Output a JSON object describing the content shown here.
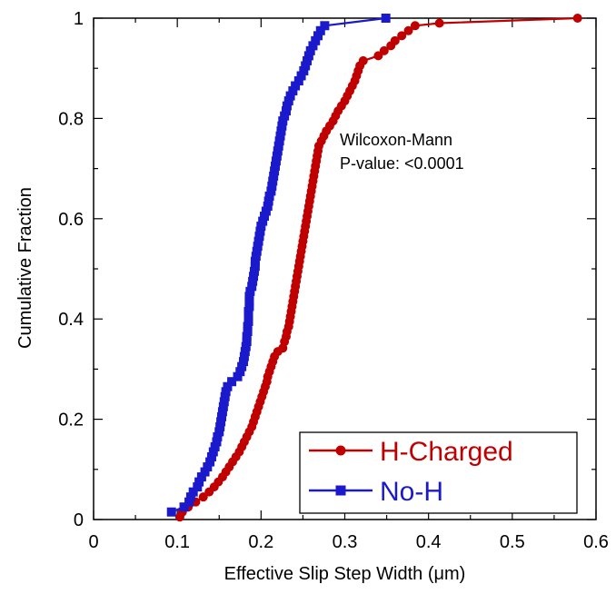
{
  "chart_data": {
    "type": "line",
    "title": "",
    "xlabel": "Effective Slip Step Width (μm)",
    "ylabel": "Cumulative Fraction",
    "xlim": [
      0,
      0.6
    ],
    "ylim": [
      0,
      1
    ],
    "xticks": [
      "0",
      "0.1",
      "0.2",
      "0.3",
      "0.4",
      "0.5",
      "0.6"
    ],
    "yticks": [
      "0",
      "0.2",
      "0.4",
      "0.6",
      "0.8",
      "1"
    ],
    "grid": false,
    "legend_position": "bottom-right",
    "annotation": {
      "line1": "Wilcoxon-Mann",
      "line2": "P-value: <0.0001"
    },
    "series": [
      {
        "name": "H-Charged",
        "color": "#c00000",
        "marker": "circle",
        "points": [
          [
            0.103,
            0.005
          ],
          [
            0.106,
            0.015
          ],
          [
            0.113,
            0.025
          ],
          [
            0.122,
            0.035
          ],
          [
            0.131,
            0.045
          ],
          [
            0.138,
            0.055
          ],
          [
            0.144,
            0.065
          ],
          [
            0.149,
            0.075
          ],
          [
            0.154,
            0.085
          ],
          [
            0.158,
            0.095
          ],
          [
            0.162,
            0.105
          ],
          [
            0.166,
            0.115
          ],
          [
            0.17,
            0.125
          ],
          [
            0.174,
            0.135
          ],
          [
            0.177,
            0.145
          ],
          [
            0.18,
            0.155
          ],
          [
            0.183,
            0.165
          ],
          [
            0.186,
            0.175
          ],
          [
            0.189,
            0.185
          ],
          [
            0.191,
            0.195
          ],
          [
            0.193,
            0.205
          ],
          [
            0.195,
            0.215
          ],
          [
            0.197,
            0.225
          ],
          [
            0.199,
            0.235
          ],
          [
            0.201,
            0.245
          ],
          [
            0.203,
            0.255
          ],
          [
            0.205,
            0.265
          ],
          [
            0.207,
            0.275
          ],
          [
            0.208,
            0.285
          ],
          [
            0.21,
            0.295
          ],
          [
            0.212,
            0.305
          ],
          [
            0.214,
            0.315
          ],
          [
            0.216,
            0.325
          ],
          [
            0.22,
            0.335
          ],
          [
            0.226,
            0.342
          ],
          [
            0.228,
            0.355
          ],
          [
            0.23,
            0.365
          ],
          [
            0.231,
            0.375
          ],
          [
            0.233,
            0.385
          ],
          [
            0.234,
            0.395
          ],
          [
            0.235,
            0.405
          ],
          [
            0.236,
            0.415
          ],
          [
            0.237,
            0.425
          ],
          [
            0.238,
            0.435
          ],
          [
            0.239,
            0.445
          ],
          [
            0.24,
            0.455
          ],
          [
            0.241,
            0.465
          ],
          [
            0.242,
            0.475
          ],
          [
            0.243,
            0.485
          ],
          [
            0.244,
            0.495
          ],
          [
            0.245,
            0.505
          ],
          [
            0.246,
            0.515
          ],
          [
            0.247,
            0.525
          ],
          [
            0.248,
            0.535
          ],
          [
            0.249,
            0.545
          ],
          [
            0.25,
            0.555
          ],
          [
            0.251,
            0.565
          ],
          [
            0.252,
            0.575
          ],
          [
            0.253,
            0.585
          ],
          [
            0.254,
            0.595
          ],
          [
            0.255,
            0.605
          ],
          [
            0.256,
            0.615
          ],
          [
            0.257,
            0.625
          ],
          [
            0.258,
            0.635
          ],
          [
            0.259,
            0.645
          ],
          [
            0.26,
            0.655
          ],
          [
            0.261,
            0.665
          ],
          [
            0.262,
            0.675
          ],
          [
            0.263,
            0.685
          ],
          [
            0.264,
            0.695
          ],
          [
            0.265,
            0.705
          ],
          [
            0.266,
            0.715
          ],
          [
            0.267,
            0.725
          ],
          [
            0.268,
            0.735
          ],
          [
            0.269,
            0.745
          ],
          [
            0.272,
            0.755
          ],
          [
            0.275,
            0.765
          ],
          [
            0.278,
            0.775
          ],
          [
            0.282,
            0.785
          ],
          [
            0.286,
            0.795
          ],
          [
            0.289,
            0.805
          ],
          [
            0.292,
            0.815
          ],
          [
            0.296,
            0.825
          ],
          [
            0.3,
            0.835
          ],
          [
            0.303,
            0.845
          ],
          [
            0.306,
            0.855
          ],
          [
            0.309,
            0.865
          ],
          [
            0.312,
            0.875
          ],
          [
            0.314,
            0.885
          ],
          [
            0.316,
            0.895
          ],
          [
            0.318,
            0.905
          ],
          [
            0.322,
            0.915
          ],
          [
            0.34,
            0.925
          ],
          [
            0.347,
            0.935
          ],
          [
            0.355,
            0.945
          ],
          [
            0.36,
            0.955
          ],
          [
            0.368,
            0.965
          ],
          [
            0.376,
            0.975
          ],
          [
            0.384,
            0.985
          ],
          [
            0.413,
            0.99
          ],
          [
            0.578,
            1.0
          ]
        ]
      },
      {
        "name": "No-H",
        "color": "#1a1acc",
        "marker": "square",
        "points": [
          [
            0.093,
            0.015
          ],
          [
            0.108,
            0.025
          ],
          [
            0.114,
            0.035
          ],
          [
            0.116,
            0.045
          ],
          [
            0.119,
            0.055
          ],
          [
            0.124,
            0.065
          ],
          [
            0.126,
            0.075
          ],
          [
            0.129,
            0.085
          ],
          [
            0.133,
            0.095
          ],
          [
            0.136,
            0.105
          ],
          [
            0.139,
            0.115
          ],
          [
            0.141,
            0.125
          ],
          [
            0.143,
            0.135
          ],
          [
            0.145,
            0.145
          ],
          [
            0.147,
            0.155
          ],
          [
            0.148,
            0.165
          ],
          [
            0.15,
            0.175
          ],
          [
            0.151,
            0.185
          ],
          [
            0.152,
            0.195
          ],
          [
            0.153,
            0.205
          ],
          [
            0.154,
            0.215
          ],
          [
            0.155,
            0.225
          ],
          [
            0.156,
            0.235
          ],
          [
            0.157,
            0.245
          ],
          [
            0.158,
            0.255
          ],
          [
            0.16,
            0.265
          ],
          [
            0.165,
            0.275
          ],
          [
            0.172,
            0.285
          ],
          [
            0.175,
            0.295
          ],
          [
            0.177,
            0.305
          ],
          [
            0.179,
            0.315
          ],
          [
            0.18,
            0.325
          ],
          [
            0.181,
            0.335
          ],
          [
            0.182,
            0.345
          ],
          [
            0.183,
            0.355
          ],
          [
            0.183,
            0.365
          ],
          [
            0.184,
            0.375
          ],
          [
            0.184,
            0.385
          ],
          [
            0.185,
            0.395
          ],
          [
            0.185,
            0.405
          ],
          [
            0.185,
            0.415
          ],
          [
            0.186,
            0.425
          ],
          [
            0.186,
            0.435
          ],
          [
            0.186,
            0.445
          ],
          [
            0.187,
            0.455
          ],
          [
            0.189,
            0.465
          ],
          [
            0.19,
            0.475
          ],
          [
            0.191,
            0.485
          ],
          [
            0.192,
            0.495
          ],
          [
            0.193,
            0.505
          ],
          [
            0.193,
            0.515
          ],
          [
            0.194,
            0.525
          ],
          [
            0.195,
            0.535
          ],
          [
            0.196,
            0.545
          ],
          [
            0.197,
            0.555
          ],
          [
            0.198,
            0.565
          ],
          [
            0.199,
            0.575
          ],
          [
            0.2,
            0.585
          ],
          [
            0.202,
            0.595
          ],
          [
            0.204,
            0.605
          ],
          [
            0.206,
            0.615
          ],
          [
            0.208,
            0.625
          ],
          [
            0.209,
            0.635
          ],
          [
            0.21,
            0.645
          ],
          [
            0.212,
            0.655
          ],
          [
            0.213,
            0.665
          ],
          [
            0.214,
            0.675
          ],
          [
            0.215,
            0.685
          ],
          [
            0.216,
            0.695
          ],
          [
            0.217,
            0.705
          ],
          [
            0.218,
            0.715
          ],
          [
            0.219,
            0.725
          ],
          [
            0.22,
            0.735
          ],
          [
            0.221,
            0.745
          ],
          [
            0.222,
            0.755
          ],
          [
            0.223,
            0.765
          ],
          [
            0.224,
            0.775
          ],
          [
            0.225,
            0.785
          ],
          [
            0.226,
            0.795
          ],
          [
            0.228,
            0.805
          ],
          [
            0.23,
            0.815
          ],
          [
            0.231,
            0.825
          ],
          [
            0.233,
            0.835
          ],
          [
            0.235,
            0.845
          ],
          [
            0.238,
            0.855
          ],
          [
            0.241,
            0.865
          ],
          [
            0.245,
            0.875
          ],
          [
            0.248,
            0.885
          ],
          [
            0.251,
            0.895
          ],
          [
            0.253,
            0.905
          ],
          [
            0.255,
            0.915
          ],
          [
            0.257,
            0.925
          ],
          [
            0.259,
            0.935
          ],
          [
            0.262,
            0.945
          ],
          [
            0.265,
            0.955
          ],
          [
            0.268,
            0.965
          ],
          [
            0.271,
            0.975
          ],
          [
            0.276,
            0.985
          ],
          [
            0.349,
            1.0
          ]
        ]
      }
    ]
  }
}
